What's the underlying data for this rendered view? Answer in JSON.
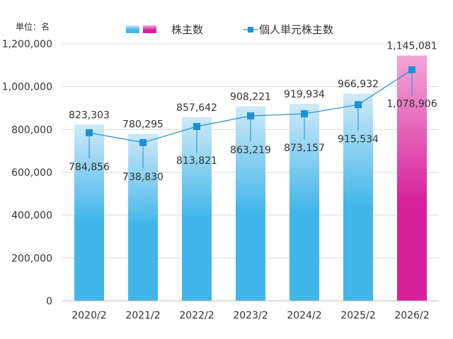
{
  "chart_data": {
    "type": "bar",
    "unit_label": "単位：名",
    "categories": [
      "2020/2",
      "2021/2",
      "2022/2",
      "2023/2",
      "2024/2",
      "2025/2",
      "2026/2"
    ],
    "series": [
      {
        "name": "株主数",
        "type": "bar",
        "values": [
          823303,
          780295,
          857642,
          908221,
          919934,
          966932,
          1145081
        ],
        "value_labels": [
          "823,303",
          "780,295",
          "857,642",
          "908,221",
          "919,934",
          "966,932",
          "1,145,081"
        ]
      },
      {
        "name": "個人単元株主数",
        "type": "line",
        "values": [
          784856,
          738830,
          813821,
          863219,
          873157,
          915534,
          1078906
        ],
        "value_labels": [
          "784,856",
          "738,830",
          "813,821",
          "863,219",
          "873,157",
          "915,534",
          "1,078,906"
        ]
      }
    ],
    "y_ticks": [
      "0",
      "200,000",
      "400,000",
      "600,000",
      "800,000",
      "1,000,000",
      "1,200,000"
    ],
    "ylim": [
      0,
      1200000
    ],
    "grid": true,
    "legend_position": "top",
    "colors": {
      "bar_top": "#cfeaf8",
      "bar_bottom": "#41b6ea",
      "highlight_top": "#f3a7d8",
      "highlight_bottom": "#d6219b",
      "line": "#1e90d8",
      "grid": "#d9d9d9"
    }
  }
}
